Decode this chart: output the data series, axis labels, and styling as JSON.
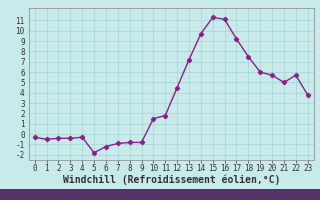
{
  "x": [
    0,
    1,
    2,
    3,
    4,
    5,
    6,
    7,
    8,
    9,
    10,
    11,
    12,
    13,
    14,
    15,
    16,
    17,
    18,
    19,
    20,
    21,
    22,
    23
  ],
  "y": [
    -0.3,
    -0.5,
    -0.4,
    -0.4,
    -0.3,
    -1.8,
    -1.2,
    -0.9,
    -0.8,
    -0.8,
    1.5,
    1.8,
    4.5,
    7.2,
    9.7,
    11.3,
    11.1,
    9.2,
    7.5,
    6.0,
    5.7,
    5.0,
    5.7,
    3.8
  ],
  "line_color": "#882288",
  "marker": "D",
  "marker_size": 2.2,
  "bg_color": "#c8eaea",
  "grid_color": "#aad8d8",
  "xlabel": "Windchill (Refroidissement éolien,°C)",
  "xlim": [
    -0.5,
    23.5
  ],
  "ylim": [
    -2.5,
    12.2
  ],
  "xticks": [
    0,
    1,
    2,
    3,
    4,
    5,
    6,
    7,
    8,
    9,
    10,
    11,
    12,
    13,
    14,
    15,
    16,
    17,
    18,
    19,
    20,
    21,
    22,
    23
  ],
  "yticks": [
    -2,
    -1,
    0,
    1,
    2,
    3,
    4,
    5,
    6,
    7,
    8,
    9,
    10,
    11
  ],
  "tick_fontsize": 5.5,
  "xlabel_fontsize": 7.0,
  "line_width": 1.0,
  "bottom_bar_color": "#553366",
  "bottom_bar_height": 0.1
}
